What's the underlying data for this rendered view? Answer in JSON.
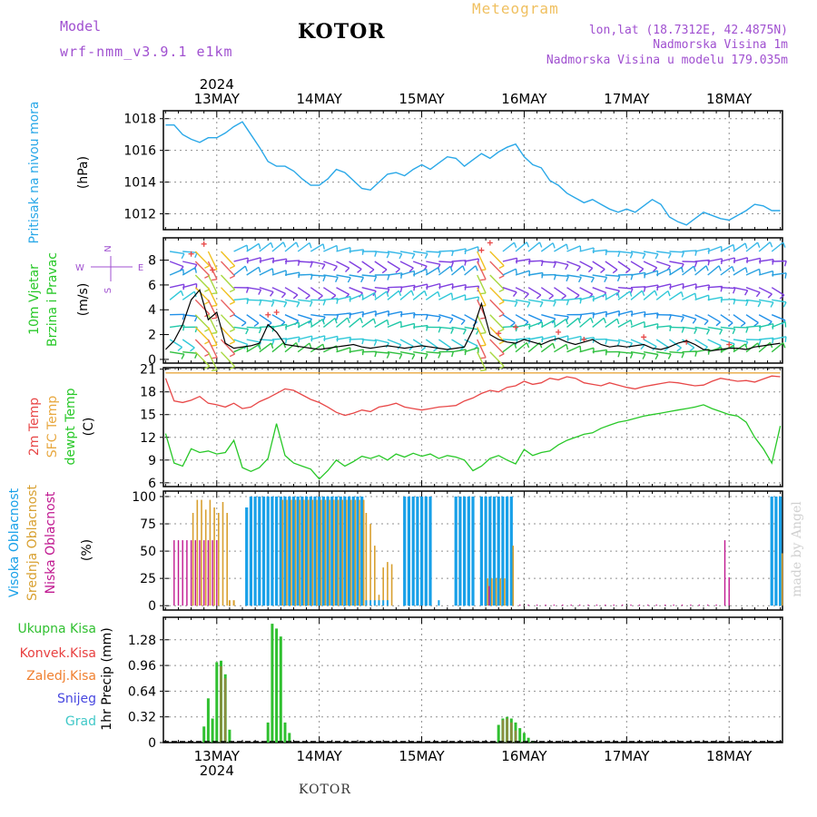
{
  "header": {
    "model_label": "Model",
    "model_name": "wrf-nmm_v3.9.1 e1km",
    "city": "KOTOR",
    "title": "Meteogram",
    "coords": "lon,lat (18.7312E, 42.4875N)",
    "altitude": "Nadmorska Visina 1m",
    "model_altitude": "Nadmorska Visina u modelu 179.035m",
    "footer_city": "KOTOR",
    "watermark": "made by Angel"
  },
  "colors": {
    "pressure": "#2aa8e8",
    "temp2m": "#e84848",
    "sfctemp": "#e8a840",
    "dewpt": "#28c828",
    "cloud_high": "#18a0e8",
    "cloud_mid": "#d8a030",
    "cloud_low": "#c01890",
    "precip_total": "#30c030",
    "precip_conv": "#e84040",
    "precip_frozen": "#f08030",
    "snow": "#4848e0",
    "graupel": "#40c8c8",
    "wind_purple": "#8040e0",
    "wind_cyan": "#30c8d8"
  },
  "chart_data": {
    "type": "line",
    "x_axis": {
      "year_label": "2024",
      "days": [
        "13MAY",
        "14MAY",
        "15MAY",
        "16MAY",
        "17MAY",
        "18MAY"
      ],
      "range_hours": [
        -12.5,
        132.5
      ]
    },
    "panels": [
      {
        "id": "pressure",
        "ylabel": "Pritisak na nivou mora",
        "unit": "(hPa)",
        "ticks": [
          1012,
          1014,
          1016,
          1018
        ],
        "ylim": [
          1011.0,
          1018.5
        ],
        "series": [
          {
            "name": "pressure",
            "x": [
              -12,
              -10,
              -8,
              -6,
              -4,
              -2,
              0,
              2,
              4,
              6,
              8,
              10,
              12,
              14,
              16,
              18,
              20,
              22,
              24,
              26,
              28,
              30,
              32,
              34,
              36,
              38,
              40,
              42,
              44,
              46,
              48,
              50,
              52,
              54,
              56,
              58,
              60,
              62,
              64,
              66,
              68,
              70,
              72,
              74,
              76,
              78,
              80,
              82,
              84,
              86,
              88,
              90,
              92,
              94,
              96,
              98,
              100,
              102,
              104,
              106,
              108,
              110,
              112,
              114,
              116,
              118,
              120,
              122,
              124,
              126,
              128,
              130,
              132
            ],
            "y": [
              1017.6,
              1017.6,
              1017.0,
              1016.7,
              1016.5,
              1016.8,
              1016.8,
              1017.1,
              1017.5,
              1017.8,
              1017.0,
              1016.2,
              1015.3,
              1015.0,
              1015.0,
              1014.7,
              1014.2,
              1013.8,
              1013.8,
              1014.2,
              1014.8,
              1014.6,
              1014.1,
              1013.6,
              1013.5,
              1014.0,
              1014.5,
              1014.6,
              1014.4,
              1014.8,
              1015.1,
              1014.8,
              1015.2,
              1015.6,
              1015.5,
              1015.0,
              1015.4,
              1015.8,
              1015.5,
              1015.9,
              1016.2,
              1016.4,
              1015.6,
              1015.1,
              1014.9,
              1014.1,
              1013.8,
              1013.3,
              1013.0,
              1012.7,
              1012.9,
              1012.6,
              1012.3,
              1012.1,
              1012.3,
              1012.1,
              1012.5,
              1012.9,
              1012.6,
              1011.8,
              1011.5,
              1011.3,
              1011.7,
              1012.1,
              1011.9,
              1011.7,
              1011.6,
              1011.9,
              1012.2,
              1012.6,
              1012.5,
              1012.2,
              1012.2
            ]
          }
        ]
      },
      {
        "id": "wind",
        "ylabel": "10m Vjetar",
        "ylabel2": "Brzina i Pravac",
        "unit": "(m/s)",
        "compass": {
          "n": "N",
          "s": "S",
          "w": "W",
          "e": "E"
        },
        "ticks": [
          0,
          2,
          4,
          6,
          8
        ],
        "ylim": [
          -0.3,
          9.8
        ],
        "series": [
          {
            "name": "wind_speed",
            "x": [
              -12,
              -10,
              -8,
              -6,
              -4,
              -2,
              0,
              2,
              4,
              6,
              8,
              10,
              12,
              14,
              16,
              18,
              20,
              22,
              24,
              26,
              28,
              30,
              32,
              34,
              36,
              38,
              40,
              42,
              44,
              46,
              48,
              50,
              52,
              54,
              56,
              58,
              60,
              62,
              64,
              66,
              68,
              70,
              72,
              74,
              76,
              78,
              80,
              82,
              84,
              86,
              88,
              90,
              92,
              94,
              96,
              98,
              100,
              102,
              104,
              106,
              108,
              110,
              112,
              114,
              116,
              118,
              120,
              122,
              124,
              126,
              128,
              130,
              132
            ],
            "y": [
              0.8,
              1.5,
              2.8,
              4.8,
              5.6,
              3.2,
              3.8,
              1.3,
              0.9,
              1.0,
              1.1,
              1.3,
              2.8,
              2.2,
              1.2,
              1.1,
              1.0,
              0.9,
              0.8,
              0.9,
              1.0,
              1.1,
              1.2,
              1.0,
              0.9,
              1.0,
              1.1,
              1.0,
              0.9,
              1.0,
              1.1,
              1.0,
              0.9,
              0.8,
              0.9,
              1.0,
              2.4,
              4.5,
              2.0,
              1.6,
              1.4,
              1.3,
              1.6,
              1.4,
              1.2,
              1.5,
              1.7,
              1.4,
              1.2,
              1.4,
              1.6,
              1.2,
              1.0,
              1.1,
              1.0,
              1.1,
              1.2,
              0.9,
              0.8,
              1.0,
              1.3,
              1.5,
              1.2,
              0.8,
              0.7,
              0.8,
              0.9,
              0.9,
              0.8,
              1.0,
              1.1,
              1.2,
              1.3
            ]
          }
        ]
      },
      {
        "id": "temperature",
        "ylabel": "2m Temp",
        "ylabel2": "SFC Temp",
        "ylabel3": "dewpt Temp",
        "unit": "(C)",
        "ticks": [
          6,
          9,
          12,
          15,
          18,
          21
        ],
        "ylim": [
          5.5,
          21.2
        ],
        "series": [
          {
            "name": "2m Temp",
            "x": [
              -12,
              -10,
              -8,
              -6,
              -4,
              -2,
              0,
              2,
              4,
              6,
              8,
              10,
              12,
              14,
              16,
              18,
              20,
              22,
              24,
              26,
              28,
              30,
              32,
              34,
              36,
              38,
              40,
              42,
              44,
              46,
              48,
              50,
              52,
              54,
              56,
              58,
              60,
              62,
              64,
              66,
              68,
              70,
              72,
              74,
              76,
              78,
              80,
              82,
              84,
              86,
              88,
              90,
              92,
              94,
              96,
              98,
              100,
              102,
              104,
              106,
              108,
              110,
              112,
              114,
              116,
              118,
              120,
              122,
              124,
              126,
              128,
              130,
              132
            ],
            "y": [
              19.8,
              16.8,
              16.6,
              16.9,
              17.4,
              16.5,
              16.3,
              16.0,
              16.5,
              15.8,
              16.0,
              16.7,
              17.2,
              17.8,
              18.4,
              18.2,
              17.6,
              17.0,
              16.6,
              16.0,
              15.3,
              14.9,
              15.2,
              15.6,
              15.4,
              16.0,
              16.2,
              16.5,
              16.0,
              15.8,
              15.6,
              15.8,
              16.0,
              16.1,
              16.2,
              16.8,
              17.2,
              17.8,
              18.2,
              18.0,
              18.6,
              18.8,
              19.4,
              19.0,
              19.2,
              19.8,
              19.6,
              20.0,
              19.8,
              19.2,
              19.0,
              18.8,
              19.2,
              18.9,
              18.6,
              18.4,
              18.7,
              18.9,
              19.1,
              19.3,
              19.2,
              19.0,
              18.8,
              18.9,
              19.4,
              19.8,
              19.6,
              19.4,
              19.5,
              19.3,
              19.7,
              20.1,
              20.0
            ]
          },
          {
            "name": "SFC Temp",
            "x": [
              -12,
              132
            ],
            "y": [
              20.5,
              20.5
            ]
          },
          {
            "name": "dewpt Temp",
            "x": [
              -12,
              -10,
              -8,
              -6,
              -4,
              -2,
              0,
              2,
              4,
              6,
              8,
              10,
              12,
              14,
              16,
              18,
              20,
              22,
              24,
              26,
              28,
              30,
              32,
              34,
              36,
              38,
              40,
              42,
              44,
              46,
              48,
              50,
              52,
              54,
              56,
              58,
              60,
              62,
              64,
              66,
              68,
              70,
              72,
              74,
              76,
              78,
              80,
              82,
              84,
              86,
              88,
              90,
              92,
              94,
              96,
              98,
              100,
              102,
              104,
              106,
              108,
              110,
              112,
              114,
              116,
              118,
              120,
              122,
              124,
              126,
              128,
              130,
              132
            ],
            "y": [
              12.5,
              8.6,
              8.2,
              10.5,
              10.0,
              10.2,
              9.8,
              10.0,
              11.6,
              8.0,
              7.5,
              8.0,
              9.2,
              13.8,
              9.6,
              8.6,
              8.2,
              7.8,
              6.5,
              7.6,
              9.0,
              8.2,
              8.8,
              9.5,
              9.2,
              9.6,
              9.0,
              9.8,
              9.4,
              9.9,
              9.5,
              9.8,
              9.2,
              9.6,
              9.4,
              9.0,
              7.6,
              8.2,
              9.2,
              9.6,
              9.0,
              8.5,
              10.4,
              9.6,
              10.0,
              10.2,
              11.0,
              11.6,
              12.0,
              12.4,
              12.6,
              13.2,
              13.6,
              14.0,
              14.2,
              14.5,
              14.8,
              15.0,
              15.2,
              15.4,
              15.6,
              15.8,
              16.0,
              16.3,
              15.8,
              15.4,
              15.0,
              14.8,
              14.0,
              12.0,
              10.5,
              8.6,
              13.5
            ]
          }
        ]
      },
      {
        "id": "cloud",
        "ylabel": "Visoka Oblacnost",
        "ylabel2": "Srednja Oblacnost",
        "ylabel3": "Niska Oblacnost",
        "unit": "(%)",
        "ticks": [
          0,
          25,
          50,
          75,
          100
        ],
        "ylim": [
          -4,
          105
        ]
      },
      {
        "id": "precip",
        "ylabel": "1hr Precip (mm)",
        "legend": [
          "Ukupna Kisa",
          "Konvek.Kisa",
          "Zaledj.Kisa",
          "Snijeg",
          "Grad"
        ],
        "ticks": [
          "0",
          "0.32",
          "0.64",
          "0.96",
          "1.28"
        ],
        "ylim": [
          0,
          1.56
        ],
        "series": [
          {
            "name": "Ukupna Kisa",
            "x": [
              -3,
              -2,
              -1,
              0,
              1,
              2,
              3,
              12,
              13,
              14,
              15,
              16,
              17,
              66,
              67,
              68,
              69,
              70,
              71,
              72,
              73,
              74
            ],
            "y": [
              0.2,
              0.55,
              0.3,
              1.0,
              1.02,
              0.85,
              0.16,
              0.25,
              1.48,
              1.42,
              1.32,
              0.25,
              0.12,
              0.22,
              0.3,
              0.32,
              0.3,
              0.25,
              0.18,
              0.12,
              0.06,
              0.02
            ]
          },
          {
            "name": "Konvek.Kisa",
            "x": [
              1,
              2,
              67,
              68,
              69,
              70
            ],
            "y": [
              0.95,
              0.8,
              0.28,
              0.3,
              0.25,
              0.15
            ]
          }
        ]
      }
    ]
  }
}
